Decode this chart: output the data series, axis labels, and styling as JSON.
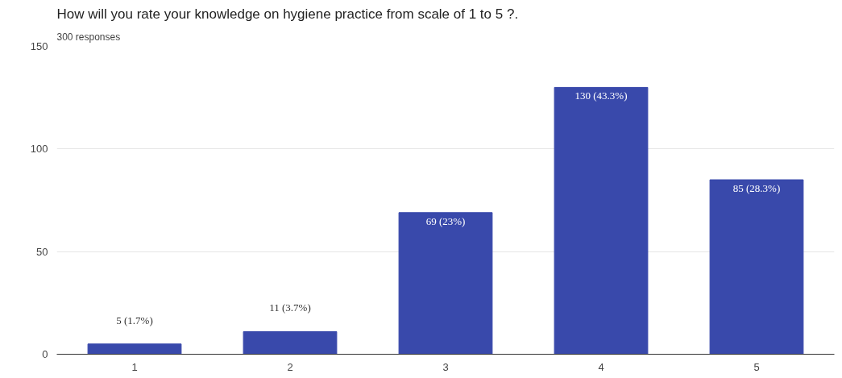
{
  "chart_data": {
    "type": "bar",
    "title": "How will you rate your knowledge on hygiene practice from scale of 1 to 5 ?.",
    "subtitle": "300 responses",
    "categories": [
      "1",
      "2",
      "3",
      "4",
      "5"
    ],
    "values": [
      5,
      11,
      69,
      130,
      85
    ],
    "value_labels": [
      "5 (1.7%)",
      "11 (3.7%)",
      "69 (23%)",
      "130 (43.3%)",
      "85 (28.3%)"
    ],
    "color": "#3949ab",
    "ylim": [
      0,
      150
    ],
    "yticks": [
      0,
      50,
      100,
      150
    ],
    "grid": "y"
  }
}
